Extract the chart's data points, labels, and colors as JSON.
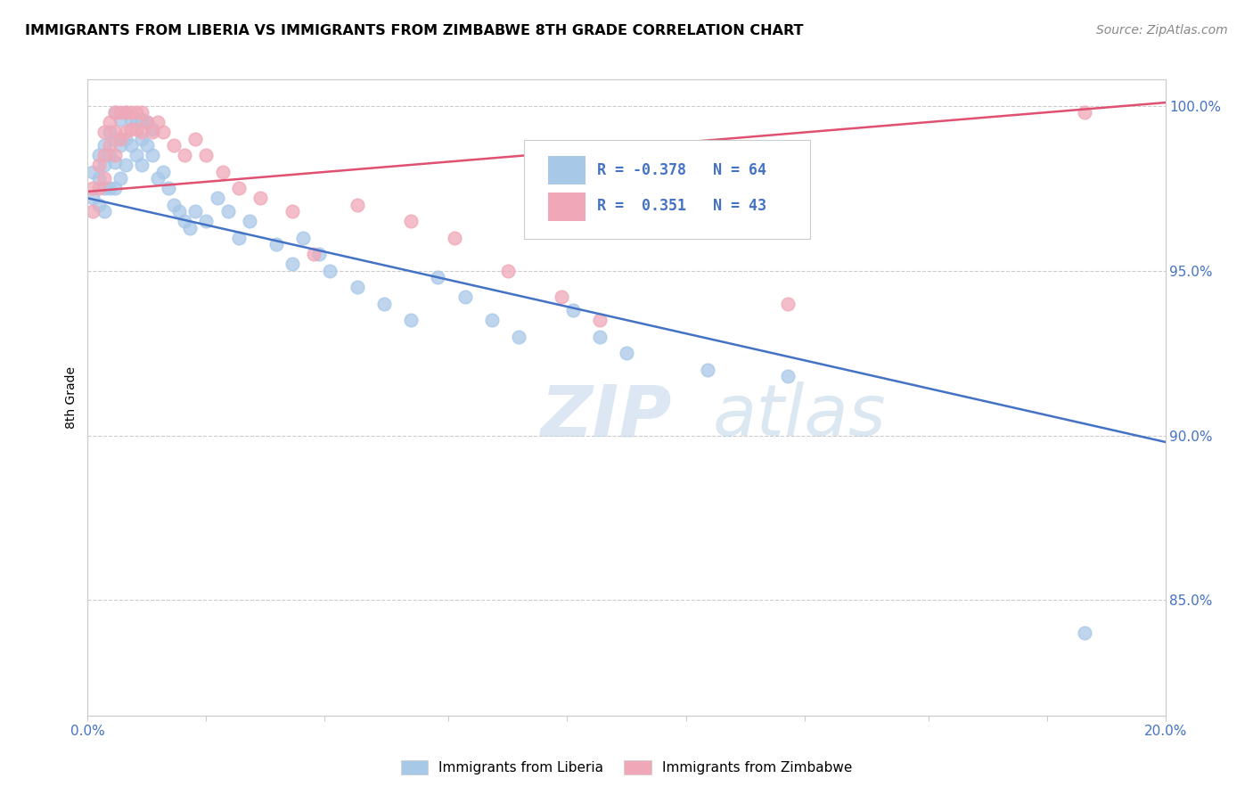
{
  "title": "IMMIGRANTS FROM LIBERIA VS IMMIGRANTS FROM ZIMBABWE 8TH GRADE CORRELATION CHART",
  "source": "Source: ZipAtlas.com",
  "ylabel": "8th Grade",
  "xlim": [
    0.0,
    0.2
  ],
  "ylim": [
    0.815,
    1.008
  ],
  "xticks": [
    0.0,
    0.022,
    0.044,
    0.067,
    0.089,
    0.111,
    0.133,
    0.156,
    0.178,
    0.2
  ],
  "xticklabels": [
    "0.0%",
    "",
    "",
    "",
    "",
    "",
    "",
    "",
    "",
    "20.0%"
  ],
  "yticks": [
    0.85,
    0.9,
    0.95,
    1.0
  ],
  "yticklabels": [
    "85.0%",
    "90.0%",
    "95.0%",
    "100.0%"
  ],
  "liberia_color": "#a8c8e8",
  "zimbabwe_color": "#f0a8b8",
  "liberia_line_color": "#4472c4",
  "zimbabwe_line_color": "#e05070",
  "watermark_zip": "ZIP",
  "watermark_atlas": "atlas",
  "legend_R_liberia": "-0.378",
  "legend_N_liberia": "64",
  "legend_R_zimbabwe": "0.351",
  "legend_N_zimbabwe": "43",
  "liberia_x": [
    0.001,
    0.001,
    0.002,
    0.002,
    0.002,
    0.003,
    0.003,
    0.003,
    0.003,
    0.004,
    0.004,
    0.004,
    0.005,
    0.005,
    0.005,
    0.005,
    0.006,
    0.006,
    0.006,
    0.007,
    0.007,
    0.007,
    0.008,
    0.008,
    0.009,
    0.009,
    0.01,
    0.01,
    0.01,
    0.011,
    0.011,
    0.012,
    0.012,
    0.013,
    0.014,
    0.015,
    0.016,
    0.017,
    0.018,
    0.019,
    0.02,
    0.022,
    0.024,
    0.026,
    0.028,
    0.03,
    0.035,
    0.038,
    0.04,
    0.043,
    0.045,
    0.05,
    0.055,
    0.06,
    0.065,
    0.07,
    0.075,
    0.08,
    0.09,
    0.095,
    0.1,
    0.115,
    0.13,
    0.185
  ],
  "liberia_y": [
    0.98,
    0.972,
    0.985,
    0.978,
    0.97,
    0.988,
    0.982,
    0.975,
    0.968,
    0.992,
    0.985,
    0.975,
    0.998,
    0.99,
    0.983,
    0.975,
    0.996,
    0.988,
    0.978,
    0.998,
    0.99,
    0.982,
    0.996,
    0.988,
    0.995,
    0.985,
    0.996,
    0.99,
    0.982,
    0.995,
    0.988,
    0.993,
    0.985,
    0.978,
    0.98,
    0.975,
    0.97,
    0.968,
    0.965,
    0.963,
    0.968,
    0.965,
    0.972,
    0.968,
    0.96,
    0.965,
    0.958,
    0.952,
    0.96,
    0.955,
    0.95,
    0.945,
    0.94,
    0.935,
    0.948,
    0.942,
    0.935,
    0.93,
    0.938,
    0.93,
    0.925,
    0.92,
    0.918,
    0.84
  ],
  "zimbabwe_x": [
    0.001,
    0.001,
    0.002,
    0.002,
    0.003,
    0.003,
    0.003,
    0.004,
    0.004,
    0.005,
    0.005,
    0.005,
    0.006,
    0.006,
    0.007,
    0.007,
    0.008,
    0.008,
    0.009,
    0.009,
    0.01,
    0.01,
    0.011,
    0.012,
    0.013,
    0.014,
    0.016,
    0.018,
    0.02,
    0.022,
    0.025,
    0.028,
    0.032,
    0.038,
    0.042,
    0.05,
    0.06,
    0.068,
    0.078,
    0.088,
    0.095,
    0.13,
    0.185
  ],
  "zimbabwe_y": [
    0.975,
    0.968,
    0.982,
    0.975,
    0.992,
    0.985,
    0.978,
    0.995,
    0.988,
    0.998,
    0.992,
    0.985,
    0.998,
    0.99,
    0.998,
    0.992,
    0.998,
    0.993,
    0.998,
    0.993,
    0.998,
    0.992,
    0.995,
    0.992,
    0.995,
    0.992,
    0.988,
    0.985,
    0.99,
    0.985,
    0.98,
    0.975,
    0.972,
    0.968,
    0.955,
    0.97,
    0.965,
    0.96,
    0.95,
    0.942,
    0.935,
    0.94,
    0.998
  ],
  "lib_line_x0": 0.0,
  "lib_line_y0": 0.972,
  "lib_line_x1": 0.2,
  "lib_line_y1": 0.898,
  "zim_line_x0": 0.0,
  "zim_line_y0": 0.974,
  "zim_line_x1": 0.2,
  "zim_line_y1": 1.001
}
